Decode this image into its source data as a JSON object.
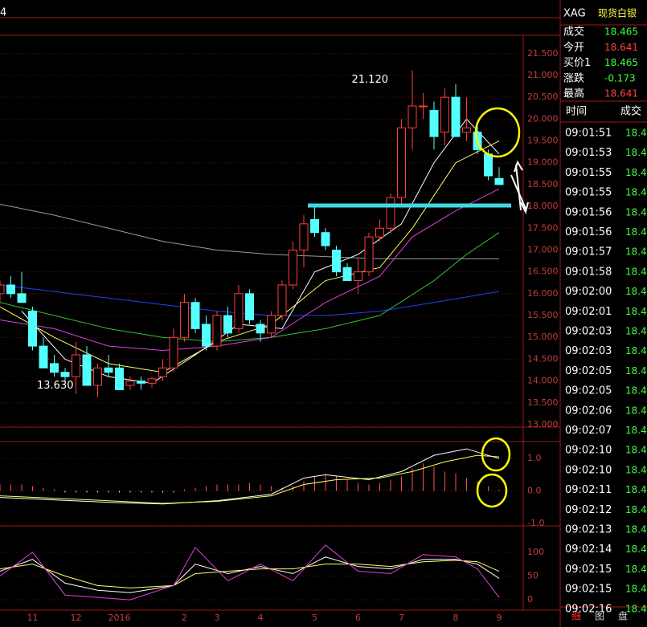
{
  "header": {
    "code": "4"
  },
  "main": {
    "ylim": [
      13.0,
      21.9
    ],
    "yticks": [
      {
        "value": 13.0,
        "label": "13.000"
      },
      {
        "value": 13.5,
        "label": "13.500"
      },
      {
        "value": 14.0,
        "label": "14.000"
      },
      {
        "value": 14.5,
        "label": "14.500"
      },
      {
        "value": 15.0,
        "label": "15.000"
      },
      {
        "value": 15.5,
        "label": "15.500"
      },
      {
        "value": 16.0,
        "label": "16.000"
      },
      {
        "value": 16.5,
        "label": "16.500"
      },
      {
        "value": 17.0,
        "label": "17.000"
      },
      {
        "value": 17.5,
        "label": "17.500"
      },
      {
        "value": 18.0,
        "label": "18.000"
      },
      {
        "value": 18.5,
        "label": "18.500"
      },
      {
        "value": 19.0,
        "label": "19.000"
      },
      {
        "value": 19.5,
        "label": "19.500"
      },
      {
        "value": 20.0,
        "label": "20.000"
      },
      {
        "value": 20.5,
        "label": "20.500"
      },
      {
        "value": 21.0,
        "label": "21.000"
      },
      {
        "value": 21.5,
        "label": "21.500"
      }
    ],
    "categories": [
      null,
      null,
      null,
      "11",
      null,
      null,
      null,
      "12",
      null,
      null,
      null,
      "2016",
      null,
      null,
      null,
      null,
      null,
      "2",
      null,
      null,
      "3",
      null,
      null,
      null,
      "4",
      null,
      null,
      null,
      null,
      "5",
      null,
      null,
      null,
      "6",
      null,
      null,
      null,
      "7",
      null,
      null,
      null,
      null,
      "8",
      null,
      null,
      null,
      "9"
    ],
    "open": [
      16.0,
      16.2,
      16.0,
      15.6,
      14.8,
      14.4,
      14.2,
      14.1,
      14.6,
      13.9,
      14.3,
      14.3,
      13.9,
      14.0,
      13.95,
      14.1,
      14.3,
      15.0,
      15.8,
      15.3,
      14.8,
      15.5,
      15.2,
      16.0,
      15.3,
      15.1,
      15.5,
      16.2,
      17.0,
      17.7,
      17.4,
      17.0,
      16.6,
      16.3,
      16.5,
      17.3,
      17.5,
      18.2,
      19.8,
      20.3,
      20.2,
      19.7,
      20.5,
      19.7,
      19.7,
      19.2,
      18.641
    ],
    "high": [
      16.3,
      16.4,
      16.5,
      15.7,
      15.0,
      14.6,
      14.3,
      14.9,
      14.8,
      14.4,
      14.6,
      14.4,
      14.1,
      14.1,
      14.1,
      14.5,
      15.2,
      16.0,
      15.9,
      15.5,
      15.6,
      15.7,
      16.2,
      16.1,
      15.4,
      15.6,
      16.3,
      17.2,
      17.8,
      18.0,
      17.5,
      17.1,
      16.7,
      16.8,
      17.4,
      17.7,
      18.3,
      20.0,
      21.12,
      20.6,
      20.4,
      20.7,
      20.8,
      20.5,
      19.9,
      19.3,
      18.9
    ],
    "low": [
      15.8,
      15.9,
      15.8,
      14.7,
      14.3,
      14.1,
      14.0,
      13.7,
      13.9,
      13.63,
      14.1,
      13.8,
      13.8,
      13.8,
      13.85,
      14.0,
      14.2,
      14.9,
      15.1,
      14.7,
      14.7,
      15.0,
      15.1,
      15.3,
      14.9,
      15.0,
      15.4,
      16.1,
      16.6,
      17.3,
      17.0,
      16.4,
      16.3,
      16.0,
      16.4,
      17.2,
      17.4,
      18.0,
      19.3,
      20.0,
      19.3,
      19.4,
      19.6,
      19.5,
      19.2,
      18.6,
      18.5
    ],
    "close": [
      16.2,
      16.0,
      15.8,
      14.8,
      14.3,
      14.2,
      14.1,
      14.6,
      13.9,
      14.3,
      14.2,
      13.8,
      14.0,
      13.95,
      14.05,
      14.3,
      15.0,
      15.8,
      15.2,
      14.8,
      15.5,
      15.1,
      16.0,
      15.4,
      15.1,
      15.5,
      16.2,
      17.0,
      17.6,
      17.4,
      17.1,
      16.5,
      16.3,
      16.5,
      17.3,
      17.5,
      18.2,
      19.8,
      20.3,
      20.3,
      19.6,
      20.5,
      19.6,
      19.8,
      19.3,
      18.7,
      18.5
    ],
    "high_label": "21.120",
    "low_label": "13.630",
    "support": 18.02,
    "ma": [
      {
        "color": "#9a9a9a",
        "x": [
          0,
          5,
          10,
          15,
          20,
          25,
          30,
          35,
          40,
          46
        ],
        "values": [
          18.05,
          17.8,
          17.5,
          17.2,
          17.0,
          16.9,
          16.85,
          16.8,
          16.8,
          16.8
        ]
      },
      {
        "color": "#2040ff",
        "x": [
          0,
          10,
          20,
          25,
          30,
          35,
          40,
          46
        ],
        "values": [
          16.2,
          15.9,
          15.6,
          15.5,
          15.5,
          15.6,
          15.8,
          16.05
        ]
      },
      {
        "color": "#30c030",
        "x": [
          0,
          5,
          10,
          15,
          20,
          25,
          30,
          35,
          40,
          43,
          46
        ],
        "values": [
          15.8,
          15.5,
          15.2,
          15.0,
          14.9,
          15.0,
          15.2,
          15.5,
          16.3,
          16.9,
          17.4
        ]
      },
      {
        "color": "#e040e0",
        "x": [
          0,
          5,
          10,
          15,
          20,
          25,
          30,
          35,
          38,
          42,
          46
        ],
        "values": [
          15.4,
          15.2,
          14.8,
          14.7,
          14.8,
          15.0,
          15.8,
          16.4,
          17.3,
          17.9,
          18.4
        ]
      },
      {
        "color": "#ffff60",
        "x": [
          0,
          5,
          10,
          15,
          20,
          25,
          30,
          35,
          38,
          42,
          46
        ],
        "values": [
          15.7,
          15.0,
          14.4,
          14.2,
          14.9,
          15.3,
          16.3,
          16.6,
          17.5,
          19.0,
          19.5
        ]
      },
      {
        "color": "#ffffff",
        "x": [
          2,
          6,
          10,
          14,
          18,
          22,
          26,
          29,
          33,
          37,
          40,
          43,
          46
        ],
        "values": [
          15.6,
          14.5,
          14.1,
          13.95,
          14.6,
          15.3,
          15.2,
          16.5,
          16.9,
          17.6,
          19.0,
          20.0,
          19.2
        ]
      }
    ]
  },
  "macd": {
    "ylim": [
      -1.05,
      1.5
    ],
    "yticks": [
      {
        "value": 1.0,
        "label": "1.0"
      },
      {
        "value": 0.0,
        "label": "0.0"
      },
      {
        "value": -1.0,
        "label": "-1.0"
      }
    ],
    "hist": [
      0.2,
      0.2,
      0.2,
      0.15,
      0.1,
      0.05,
      -0.02,
      -0.02,
      -0.02,
      -0.02,
      -0.02,
      -0.02,
      -0.02,
      -0.02,
      -0.02,
      -0.02,
      -0.02,
      0.05,
      0.1,
      0.15,
      0.2,
      0.2,
      0.2,
      0.25,
      0.2,
      0.15,
      0.1,
      0.15,
      0.3,
      0.45,
      0.5,
      0.45,
      0.35,
      0.25,
      0.2,
      0.25,
      0.35,
      0.45,
      0.7,
      0.85,
      0.75,
      0.6,
      0.55,
      0.4,
      0.3,
      0.15,
      0.05
    ],
    "lines": [
      {
        "color": "#ffffff",
        "x": [
          0,
          10,
          15,
          20,
          25,
          28,
          30,
          34,
          37,
          40,
          43,
          46
        ],
        "values": [
          -0.2,
          -0.35,
          -0.4,
          -0.3,
          -0.1,
          0.4,
          0.5,
          0.35,
          0.6,
          1.1,
          1.3,
          1.0
        ]
      },
      {
        "color": "#ffff60",
        "x": [
          0,
          10,
          15,
          20,
          25,
          28,
          31,
          35,
          38,
          41,
          44,
          46
        ],
        "values": [
          -0.15,
          -0.3,
          -0.38,
          -0.32,
          -0.15,
          0.2,
          0.35,
          0.4,
          0.6,
          0.9,
          1.1,
          1.05
        ]
      }
    ]
  },
  "kdj": {
    "ylim": [
      -20,
      152
    ],
    "yticks": [
      100,
      50,
      0
    ],
    "lines": [
      {
        "color": "#ffffff",
        "x": [
          0,
          3,
          6,
          9,
          12,
          16,
          18,
          21,
          24,
          27,
          30,
          33,
          36,
          39,
          42,
          44,
          46
        ],
        "values": [
          60,
          85,
          35,
          20,
          15,
          30,
          75,
          55,
          70,
          55,
          90,
          70,
          65,
          85,
          85,
          75,
          45
        ]
      },
      {
        "color": "#ffff60",
        "x": [
          0,
          3,
          6,
          9,
          12,
          16,
          18,
          21,
          24,
          27,
          30,
          33,
          36,
          39,
          42,
          44,
          46
        ],
        "values": [
          65,
          75,
          50,
          30,
          25,
          30,
          55,
          60,
          65,
          65,
          75,
          75,
          70,
          80,
          83,
          80,
          60
        ]
      },
      {
        "color": "#e040e0",
        "x": [
          0,
          3,
          6,
          9,
          12,
          16,
          18,
          21,
          24,
          27,
          30,
          33,
          36,
          39,
          42,
          44,
          46
        ],
        "values": [
          50,
          100,
          10,
          5,
          0,
          30,
          110,
          40,
          75,
          40,
          115,
          60,
          55,
          95,
          90,
          65,
          5
        ]
      }
    ]
  },
  "quote": {
    "code": "XAG",
    "name": "现货白银",
    "rows": [
      {
        "label": "成交",
        "value": "18.465",
        "color": "#40ff40"
      },
      {
        "label": "今开",
        "value": "18.641",
        "color": "#ff4040"
      },
      {
        "label": "买价1",
        "value": "18.465",
        "color": "#40ff40"
      },
      {
        "label": "涨跌",
        "value": "-0.173",
        "color": "#40ff40"
      },
      {
        "label": "最高",
        "value": "18.641",
        "color": "#ff4040"
      }
    ],
    "head": [
      "时间",
      "成交"
    ],
    "ticks": [
      [
        "09:01:51",
        "18.4"
      ],
      [
        "09:01:53",
        "18.4"
      ],
      [
        "09:01:55",
        "18.4"
      ],
      [
        "09:01:55",
        "18.4"
      ],
      [
        "09:01:56",
        "18.4"
      ],
      [
        "09:01:56",
        "18.4"
      ],
      [
        "09:01:57",
        "18.4"
      ],
      [
        "09:01:58",
        "18.4"
      ],
      [
        "09:02:00",
        "18.4"
      ],
      [
        "09:02:01",
        "18.4"
      ],
      [
        "09:02:03",
        "18.4"
      ],
      [
        "09:02:03",
        "18.4"
      ],
      [
        "09:02:05",
        "18.4"
      ],
      [
        "09:02:05",
        "18.4"
      ],
      [
        "09:02:06",
        "18.4"
      ],
      [
        "09:02:07",
        "18.4"
      ],
      [
        "09:02:10",
        "18.4"
      ],
      [
        "09:02:10",
        "18.4"
      ],
      [
        "09:02:11",
        "18.4"
      ],
      [
        "09:02:12",
        "18.4"
      ],
      [
        "09:02:13",
        "18.4"
      ],
      [
        "09:02:14",
        "18.4"
      ],
      [
        "09:02:15",
        "18.4"
      ],
      [
        "09:02:15",
        "18.4"
      ],
      [
        "09:02:16",
        "18.4"
      ]
    ],
    "tabs": [
      "细",
      "图",
      "盘"
    ]
  }
}
